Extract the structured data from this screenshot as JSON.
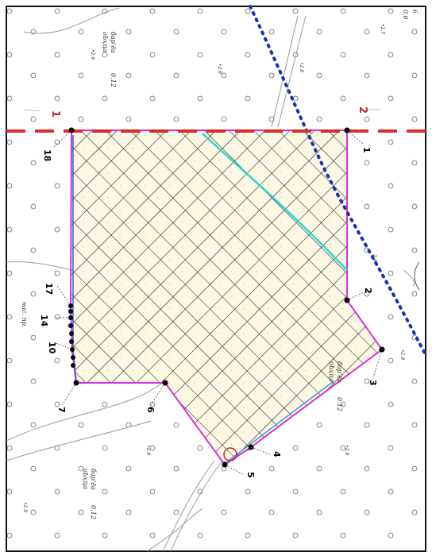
{
  "section_line": {
    "start_label": "1",
    "end_label": "2",
    "color": "#d92b2b"
  },
  "parcel": {
    "outline_color": "#d633d6",
    "hatch_color": "#000000",
    "fill_color": "#fdf8e4",
    "points": [
      {
        "label": "1"
      },
      {
        "label": "2"
      },
      {
        "label": "3"
      },
      {
        "label": "4"
      },
      {
        "label": "5"
      },
      {
        "label": "6"
      },
      {
        "label": "7"
      },
      {
        "label": "10"
      },
      {
        "label": "14"
      },
      {
        "label": "17"
      },
      {
        "label": "18"
      }
    ]
  },
  "boundary_line": {
    "color": "#1c2fb8"
  },
  "cyan_line": {
    "color": "#2ad4d4"
  },
  "map_labels": {
    "label_a1": "бар’ёа",
    "label_a2": "0.12",
    "label_a3": "оЬҳҵа",
    "label_b1": "бар’ёа",
    "label_b2": "0.12",
    "label_b3": "оЬҳҵа",
    "label_c1": "бар’ёа",
    "label_c2": "0.12",
    "label_c3": "оЬҳҵа",
    "label_d": "наc. пр.",
    "label_e": "6",
    "label_e2": "0.6",
    "n1": "•2.9",
    "n2": "•2.8",
    "n3": "•2.8",
    "n4": "•2.9",
    "n5": "•2.9",
    "n6": "•2.9",
    "n7": "•2.9",
    "n8": "•2.7",
    "n9": "2.9"
  }
}
